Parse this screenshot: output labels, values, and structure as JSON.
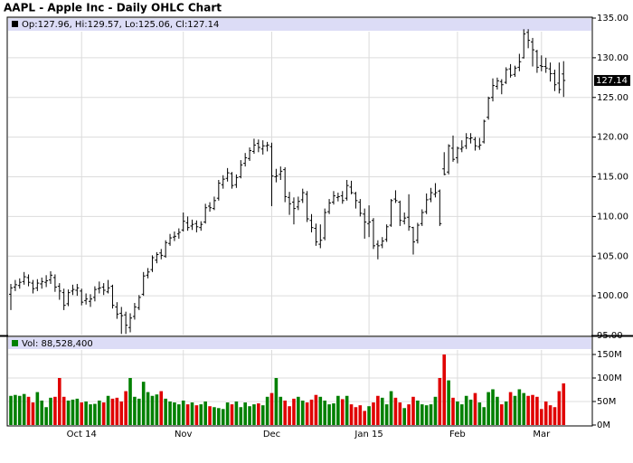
{
  "chart_data": [
    {
      "type": "ohlc",
      "title": "AAPL - Apple Inc - Daily OHLC Chart",
      "legend": "Op:127.96, Hi:129.57, Lo:125.06, Cl:127.14",
      "color": "#000000",
      "open": [
        100.2,
        101.1,
        101.3,
        101.8,
        102.3,
        101.6,
        101.0,
        101.5,
        101.7,
        102.0,
        102.3,
        101.2,
        100.4,
        99.0,
        100.6,
        100.7,
        100.6,
        99.4,
        99.3,
        99.8,
        100.9,
        101.1,
        100.5,
        101.2,
        98.6,
        97.8,
        97.6,
        96.0,
        97.4,
        98.5,
        100.2,
        102.6,
        103.3,
        104.5,
        105.4,
        105.0,
        106.6,
        107.4,
        107.8,
        108.3,
        109.2,
        108.8,
        109.1,
        108.6,
        109.3,
        111.3,
        111.0,
        112.3,
        114.0,
        114.8,
        115.4,
        114.0,
        115.0,
        116.7,
        117.3,
        118.2,
        119.2,
        118.5,
        118.9,
        118.8,
        115.0,
        115.3,
        115.9,
        112.4,
        111.8,
        111.2,
        112.1,
        112.8,
        109.5,
        108.5,
        106.5,
        107.3,
        110.6,
        111.8,
        112.4,
        112.6,
        112.3,
        113.7,
        112.9,
        111.8,
        110.3,
        109.1,
        109.5,
        106.5,
        106.4,
        107.1,
        108.9,
        112.2,
        111.8,
        109.4,
        109.9,
        108.6,
        107.0,
        109.1,
        110.6,
        112.2,
        112.8,
        113.2,
        116.0,
        115.6,
        118.6,
        117.4,
        118.5,
        118.9,
        119.8,
        119.7,
        118.8,
        119.4,
        122.5,
        125.0,
        126.4,
        127.0,
        126.9,
        128.6,
        127.9,
        128.8,
        130.0,
        133.2,
        132.0,
        130.8,
        129.0,
        128.9,
        128.6,
        128.0,
        126.8,
        127.96
      ],
      "high": [
        101.5,
        102.0,
        102.2,
        103.0,
        102.7,
        102.0,
        102.1,
        102.3,
        102.6,
        103.1,
        102.7,
        101.6,
        100.9,
        100.8,
        101.4,
        101.5,
        100.9,
        100.3,
        100.2,
        101.2,
        101.8,
        101.6,
        102.0,
        101.4,
        99.2,
        98.6,
        98.0,
        97.8,
        99.1,
        100.1,
        103.0,
        103.5,
        105.1,
        105.5,
        105.9,
        107.0,
        107.8,
        108.1,
        108.5,
        110.5,
        110.0,
        109.6,
        109.5,
        109.4,
        111.6,
        111.8,
        112.5,
        114.6,
        115.2,
        116.1,
        115.6,
        115.3,
        117.1,
        118.0,
        118.7,
        119.8,
        119.7,
        119.6,
        119.4,
        119.3,
        116.0,
        116.3,
        116.2,
        113.1,
        112.4,
        112.5,
        113.5,
        113.2,
        110.3,
        109.1,
        109.0,
        111.0,
        112.2,
        113.2,
        113.0,
        113.2,
        114.6,
        114.5,
        113.1,
        112.2,
        111.0,
        111.4,
        109.8,
        107.0,
        107.4,
        109.0,
        112.2,
        113.3,
        112.0,
        110.5,
        112.8,
        108.7,
        109.2,
        110.9,
        112.9,
        113.6,
        114.2,
        113.4,
        118.1,
        119.1,
        120.2,
        118.8,
        119.6,
        120.5,
        120.5,
        120.0,
        119.9,
        122.2,
        125.1,
        127.4,
        127.5,
        127.3,
        128.8,
        129.2,
        129.0,
        130.5,
        133.6,
        133.6,
        132.5,
        131.0,
        130.3,
        130.0,
        129.4,
        128.5,
        129.4,
        129.57
      ],
      "low": [
        98.2,
        100.6,
        100.9,
        101.4,
        101.2,
        100.3,
        100.6,
        100.9,
        101.1,
        101.5,
        100.5,
        99.5,
        98.2,
        98.7,
        100.1,
        100.0,
        98.8,
        98.9,
        98.6,
        99.3,
        100.3,
        100.1,
        100.3,
        98.4,
        97.1,
        95.2,
        95.2,
        95.4,
        97.0,
        98.2,
        100.0,
        102.2,
        103.0,
        104.1,
        104.6,
        104.8,
        106.3,
        106.9,
        107.2,
        108.1,
        108.2,
        108.3,
        108.0,
        108.2,
        109.1,
        110.6,
        110.8,
        112.0,
        113.5,
        114.4,
        113.5,
        113.6,
        114.8,
        116.3,
        117.0,
        117.9,
        118.1,
        117.8,
        118.2,
        111.3,
        114.3,
        114.6,
        111.8,
        110.2,
        109.0,
        110.8,
        111.7,
        109.3,
        108.0,
        106.3,
        106.0,
        107.0,
        110.3,
        111.5,
        111.9,
        111.6,
        112.0,
        112.8,
        111.0,
        110.0,
        107.2,
        107.4,
        105.9,
        104.6,
        106.0,
        106.8,
        108.7,
        111.7,
        108.8,
        109.0,
        108.2,
        105.2,
        106.6,
        108.8,
        110.3,
        111.8,
        112.4,
        108.8,
        115.2,
        115.3,
        116.9,
        116.7,
        118.1,
        118.5,
        119.2,
        118.3,
        118.4,
        119.2,
        122.2,
        124.5,
        126.0,
        125.4,
        126.7,
        127.5,
        127.6,
        128.3,
        129.9,
        131.2,
        128.9,
        128.1,
        128.3,
        128.1,
        127.0,
        125.8,
        125.5,
        125.06
      ],
      "close": [
        101.0,
        101.4,
        101.7,
        102.4,
        101.7,
        100.9,
        101.6,
        101.8,
        101.9,
        102.6,
        101.1,
        100.6,
        98.8,
        100.4,
        100.8,
        101.0,
        99.2,
        99.6,
        99.6,
        100.8,
        101.0,
        100.7,
        101.0,
        98.8,
        97.7,
        97.5,
        96.3,
        97.2,
        98.6,
        99.8,
        102.5,
        103.0,
        104.8,
        105.2,
        105.1,
        106.7,
        107.3,
        107.5,
        108.0,
        109.4,
        108.6,
        109.0,
        108.7,
        109.0,
        111.1,
        111.1,
        112.0,
        114.2,
        114.7,
        115.5,
        113.9,
        114.9,
        116.5,
        117.4,
        118.3,
        119.0,
        118.7,
        118.9,
        119.0,
        115.1,
        115.1,
        115.7,
        112.5,
        111.6,
        111.0,
        111.9,
        113.0,
        109.7,
        108.6,
        106.8,
        107.0,
        110.5,
        111.7,
        112.6,
        112.5,
        112.0,
        113.9,
        113.0,
        112.0,
        110.4,
        109.3,
        109.3,
        106.3,
        106.3,
        106.9,
        108.7,
        112.0,
        112.0,
        109.5,
        109.8,
        108.7,
        106.8,
        108.9,
        110.5,
        112.1,
        113.0,
        113.0,
        109.1,
        115.3,
        118.9,
        117.2,
        118.6,
        118.7,
        119.9,
        119.9,
        118.9,
        119.0,
        122.0,
        124.9,
        126.5,
        127.1,
        126.6,
        128.5,
        127.8,
        128.7,
        129.5,
        133.0,
        132.2,
        131.0,
        128.8,
        128.9,
        128.7,
        128.0,
        126.6,
        126.0,
        127.14
      ],
      "ylim": [
        95,
        135
      ],
      "yticks": [
        {
          "value": 95,
          "label": "95.00"
        },
        {
          "value": 100,
          "label": "100.00"
        },
        {
          "value": 105,
          "label": "105.00"
        },
        {
          "value": 110,
          "label": "110.00"
        },
        {
          "value": 115,
          "label": "115.00"
        },
        {
          "value": 120,
          "label": "120.00"
        },
        {
          "value": 125,
          "label": "125.00"
        },
        {
          "value": 130,
          "label": "130.00"
        },
        {
          "value": 135,
          "label": "135.00"
        }
      ],
      "grid": true
    },
    {
      "type": "bar",
      "legend": "Vol: 88,528,400",
      "up_color": "#008000",
      "down_color": "#e00000",
      "categories": [
        null,
        null,
        null,
        null,
        null,
        null,
        null,
        null,
        null,
        null,
        null,
        null,
        null,
        null,
        null,
        null,
        "Oct 14",
        null,
        null,
        null,
        null,
        null,
        null,
        null,
        null,
        null,
        null,
        null,
        null,
        null,
        null,
        null,
        null,
        null,
        null,
        null,
        null,
        null,
        null,
        "Nov",
        null,
        null,
        null,
        null,
        null,
        null,
        null,
        null,
        null,
        null,
        null,
        null,
        null,
        null,
        null,
        null,
        null,
        null,
        null,
        "Dec",
        null,
        null,
        null,
        null,
        null,
        null,
        null,
        null,
        null,
        null,
        null,
        null,
        null,
        null,
        null,
        null,
        null,
        null,
        null,
        null,
        null,
        "Jan 15",
        null,
        null,
        null,
        null,
        null,
        null,
        null,
        null,
        null,
        null,
        null,
        null,
        null,
        null,
        null,
        null,
        null,
        null,
        null,
        "Feb",
        null,
        null,
        null,
        null,
        null,
        null,
        null,
        null,
        null,
        null,
        null,
        null,
        null,
        null,
        null,
        null,
        null,
        null,
        "Mar",
        null,
        null,
        null,
        null,
        null
      ],
      "values": [
        62,
        64,
        62,
        66,
        60,
        48,
        70,
        52,
        38,
        58,
        60,
        100,
        60,
        52,
        54,
        56,
        48,
        50,
        44,
        45,
        52,
        48,
        62,
        56,
        58,
        50,
        72,
        100,
        60,
        56,
        92,
        70,
        62,
        65,
        72,
        56,
        50,
        48,
        44,
        52,
        44,
        48,
        42,
        44,
        50,
        40,
        38,
        36,
        34,
        48,
        44,
        50,
        38,
        48,
        40,
        44,
        46,
        42,
        60,
        68,
        100,
        60,
        52,
        40,
        56,
        60,
        52,
        48,
        54,
        64,
        60,
        52,
        44,
        46,
        62,
        55,
        62,
        44,
        38,
        42,
        30,
        40,
        48,
        62,
        58,
        44,
        72,
        58,
        48,
        36,
        44,
        60,
        52,
        44,
        42,
        44,
        60,
        100,
        150,
        95,
        58,
        50,
        44,
        62,
        54,
        68,
        48,
        38,
        70,
        76,
        60,
        44,
        50,
        70,
        62,
        76,
        68,
        62,
        64,
        60,
        34,
        50,
        42,
        38,
        72,
        88.5284
      ],
      "ylim": [
        0,
        180
      ],
      "yticks": [
        {
          "value": 0,
          "label": "0M"
        },
        {
          "value": 50,
          "label": "50M"
        },
        {
          "value": 100,
          "label": "100M"
        },
        {
          "value": 150,
          "label": "150M"
        }
      ],
      "grid": true
    }
  ]
}
